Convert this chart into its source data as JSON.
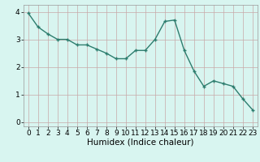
{
  "x": [
    0,
    1,
    2,
    3,
    4,
    5,
    6,
    7,
    8,
    9,
    10,
    11,
    12,
    13,
    14,
    15,
    16,
    17,
    18,
    19,
    20,
    21,
    22,
    23
  ],
  "y": [
    3.95,
    3.45,
    3.2,
    3.0,
    3.0,
    2.8,
    2.8,
    2.65,
    2.5,
    2.3,
    2.3,
    2.6,
    2.6,
    3.0,
    3.65,
    3.7,
    2.6,
    1.85,
    1.3,
    1.5,
    1.4,
    1.3,
    0.85,
    0.45
  ],
  "line_color": "#2d7d6e",
  "marker": "+",
  "marker_size": 3.5,
  "bg_color": "#d8f5f0",
  "grid_color": "#c8a8a8",
  "xlabel": "Humidex (Indice chaleur)",
  "xlim": [
    -0.5,
    23.5
  ],
  "ylim": [
    -0.15,
    4.25
  ],
  "yticks": [
    0,
    1,
    2,
    3,
    4
  ],
  "xticks": [
    0,
    1,
    2,
    3,
    4,
    5,
    6,
    7,
    8,
    9,
    10,
    11,
    12,
    13,
    14,
    15,
    16,
    17,
    18,
    19,
    20,
    21,
    22,
    23
  ],
  "xlabel_fontsize": 7.5,
  "tick_fontsize": 6.5,
  "line_width": 1.0,
  "marker_edge_width": 1.0
}
